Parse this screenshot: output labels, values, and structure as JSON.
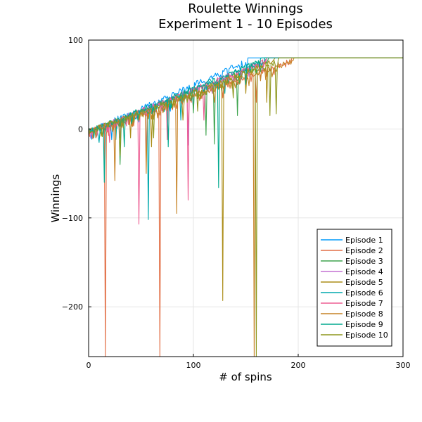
{
  "chart_data": {
    "type": "line",
    "title": "Roulette Winnings",
    "subtitle": "Experiment 1 - 10 Episodes",
    "xlabel": "# of spins",
    "ylabel": "Winnings",
    "xlim": [
      0,
      300
    ],
    "ylim": [
      -256,
      100
    ],
    "x_ticks": [
      0,
      100,
      200,
      300
    ],
    "y_ticks": [
      100,
      0,
      -100,
      -200
    ],
    "x_tick_labels": [
      "0",
      "100",
      "200",
      "300"
    ],
    "y_tick_labels": [
      "100",
      "0",
      "−100",
      "−200"
    ],
    "grid": true,
    "legend_position": "bottom-right",
    "target_winnings": 80,
    "series": [
      {
        "name": "Episode 1",
        "color": "#009AFA",
        "end_spin": 152,
        "dips": [
          [
            22,
            -12
          ],
          [
            48,
            8
          ],
          [
            78,
            20
          ],
          [
            100,
            22
          ],
          [
            125,
            58
          ]
        ]
      },
      {
        "name": "Episode 2",
        "color": "#E26F46",
        "end_spin": 194,
        "dips": [
          [
            16,
            -256
          ],
          [
            68,
            -256
          ],
          [
            95,
            -5
          ],
          [
            128,
            35
          ],
          [
            160,
            30
          ]
        ]
      },
      {
        "name": "Episode 3",
        "color": "#3EA44E",
        "end_spin": 172,
        "dips": [
          [
            30,
            -40
          ],
          [
            60,
            20
          ],
          [
            100,
            18
          ],
          [
            112,
            -7
          ],
          [
            120,
            -17
          ],
          [
            142,
            15
          ]
        ]
      },
      {
        "name": "Episode 4",
        "color": "#C371D2",
        "end_spin": 170,
        "dips": [
          [
            30,
            -10
          ],
          [
            55,
            -30
          ],
          [
            95,
            -18
          ],
          [
            118,
            40
          ],
          [
            140,
            55
          ]
        ]
      },
      {
        "name": "Episode 5",
        "color": "#AC8D18",
        "end_spin": 178,
        "dips": [
          [
            40,
            -10
          ],
          [
            60,
            -20
          ],
          [
            90,
            10
          ],
          [
            128,
            -193
          ],
          [
            150,
            40
          ],
          [
            170,
            30
          ]
        ]
      },
      {
        "name": "Episode 6",
        "color": "#00A9AD",
        "end_spin": 168,
        "dips": [
          [
            10,
            -15
          ],
          [
            26,
            -12
          ],
          [
            57,
            -102
          ],
          [
            88,
            10
          ],
          [
            130,
            40
          ]
        ]
      },
      {
        "name": "Episode 7",
        "color": "#ED5E93",
        "end_spin": 170,
        "dips": [
          [
            20,
            -15
          ],
          [
            48,
            -107
          ],
          [
            75,
            -12
          ],
          [
            95,
            -80
          ],
          [
            110,
            10
          ],
          [
            140,
            55
          ]
        ]
      },
      {
        "name": "Episode 8",
        "color": "#C68225",
        "end_spin": 196,
        "dips": [
          [
            25,
            -58
          ],
          [
            55,
            -50
          ],
          [
            84,
            -95
          ],
          [
            120,
            30
          ],
          [
            158,
            -256
          ]
        ]
      },
      {
        "name": "Episode 9",
        "color": "#00A98E",
        "end_spin": 165,
        "dips": [
          [
            15,
            -60
          ],
          [
            34,
            -20
          ],
          [
            76,
            -20
          ],
          [
            124,
            -66
          ],
          [
            150,
            50
          ]
        ]
      },
      {
        "name": "Episode 10",
        "color": "#8E971D",
        "end_spin": 182,
        "dips": [
          [
            30,
            -30
          ],
          [
            62,
            -10
          ],
          [
            104,
            20
          ],
          [
            138,
            35
          ],
          [
            160,
            -256
          ],
          [
            173,
            15
          ],
          [
            179,
            17
          ]
        ]
      }
    ]
  }
}
